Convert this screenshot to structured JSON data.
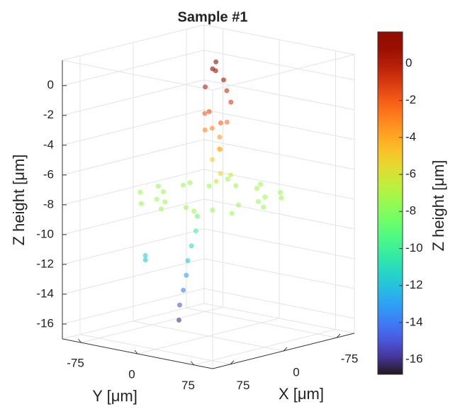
{
  "chart_data": {
    "type": "scatter3d",
    "title": "Sample #1",
    "x_label": "X [μm]",
    "y_label": "Y [μm]",
    "z_label": "Z height [μm]",
    "xlim": [
      -100,
      100
    ],
    "ylim": [
      -100,
      100
    ],
    "zlim": [
      -17,
      1.7
    ],
    "xticks": [
      -75,
      0,
      75
    ],
    "yticks": [
      -75,
      0,
      75
    ],
    "zticks": [
      0,
      -2,
      -4,
      -6,
      -8,
      -10,
      -12,
      -14,
      -16
    ],
    "grid": true,
    "colormap": "turbo",
    "colorbar": {
      "label": "Z height [μm]",
      "lim": [
        -16.8,
        1.7
      ],
      "ticks": [
        0,
        -2,
        -4,
        -6,
        -8,
        -10,
        -12,
        -14,
        -16
      ]
    },
    "x": [
      75,
      66,
      40,
      5,
      -30,
      -56,
      -65,
      -56,
      -30,
      5,
      40,
      66,
      55,
      42,
      19,
      -9,
      -32,
      -45,
      -45,
      -32,
      -9,
      19,
      42,
      55,
      0,
      10,
      -5,
      5,
      15,
      -10,
      0,
      20,
      5,
      -5,
      10,
      0,
      15,
      -10,
      5,
      20,
      -5,
      10,
      0,
      25,
      5,
      5,
      8,
      10,
      10,
      12,
      14,
      15,
      39,
      39
    ],
    "y": [
      8,
      43,
      69,
      78,
      69,
      43,
      8,
      -27,
      -53,
      -62,
      -53,
      -27,
      22,
      45,
      58,
      58,
      45,
      22,
      -6,
      -29,
      -42,
      -42,
      -29,
      -6,
      10,
      15,
      5,
      25,
      10,
      15,
      30,
      20,
      0,
      20,
      5,
      15,
      30,
      5,
      10,
      35,
      25,
      20,
      5,
      40,
      -10,
      -12,
      -15,
      -18,
      -20,
      -22,
      -25,
      -25,
      -47,
      -47
    ],
    "z": [
      -7.5,
      -7.4,
      -7.6,
      -7.5,
      -7.4,
      -7.6,
      -7.5,
      -7.4,
      -7.6,
      -7.5,
      -7.4,
      -7.6,
      -7.5,
      -7.6,
      -7.4,
      -7.5,
      -7.6,
      -7.4,
      -7.5,
      -7.6,
      -7.4,
      -7.5,
      -7.6,
      -7.4,
      1.5,
      1.2,
      0.8,
      0.5,
      0,
      -0.5,
      -1,
      -1.5,
      -2,
      -2.5,
      -3,
      -3.5,
      -4,
      -4.5,
      -5,
      -5.5,
      -6,
      -6.3,
      -3,
      -2,
      -9,
      -10,
      -11,
      -12,
      -13,
      -14,
      -15,
      -16,
      -11.6,
      -11.9
    ]
  }
}
